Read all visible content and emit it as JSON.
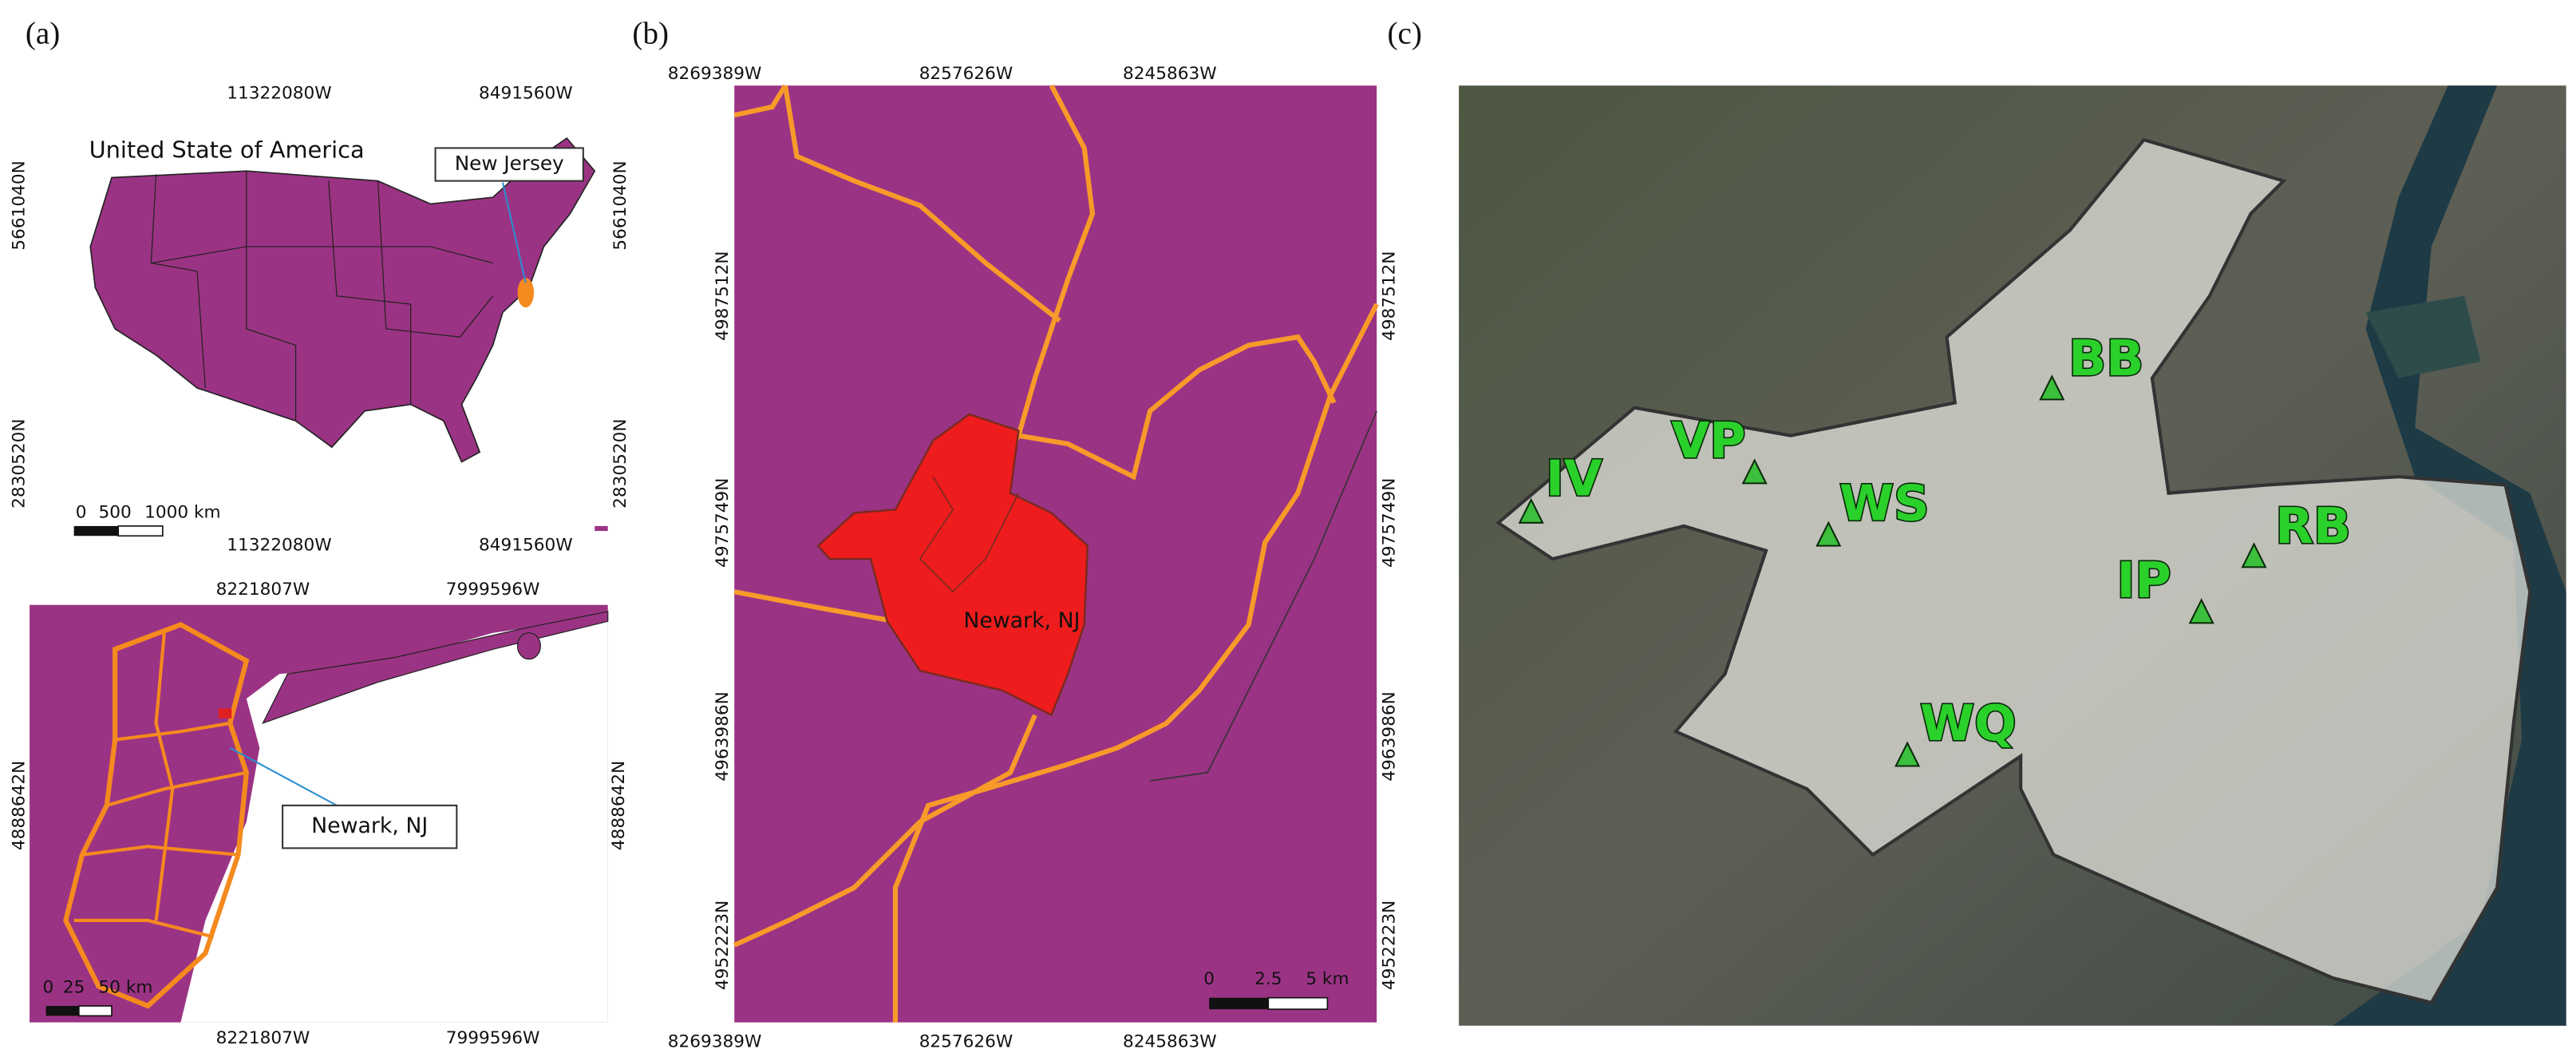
{
  "panels": [
    {
      "label": "(a)",
      "top_map": {
        "title": "United State of America",
        "x_ticks": [
          "11322080W",
          "8491560W"
        ],
        "y_ticks": [
          "5661040N",
          "2830520N"
        ],
        "callout": "New Jersey",
        "scale_labels": [
          "0",
          "500",
          "1000 km"
        ]
      },
      "bottom_map": {
        "x_ticks": [
          "8221807W",
          "7999596W"
        ],
        "y_ticks": [
          "4888642N"
        ],
        "callout": "Newark, NJ",
        "scale_labels": [
          "0",
          "25",
          "50 km"
        ]
      }
    },
    {
      "label": "(b)",
      "x_ticks": [
        "8269389W",
        "8257626W",
        "8245863W"
      ],
      "y_ticks": [
        "4987512N",
        "4975749N",
        "4963986N",
        "4952223N"
      ],
      "place_label": "Newark, NJ",
      "scale_labels": [
        "0",
        "2.5",
        "5 km"
      ]
    },
    {
      "label": "(c)",
      "sites": [
        "IV",
        "VP",
        "WS",
        "BB",
        "RB",
        "IP",
        "WQ"
      ]
    }
  ]
}
